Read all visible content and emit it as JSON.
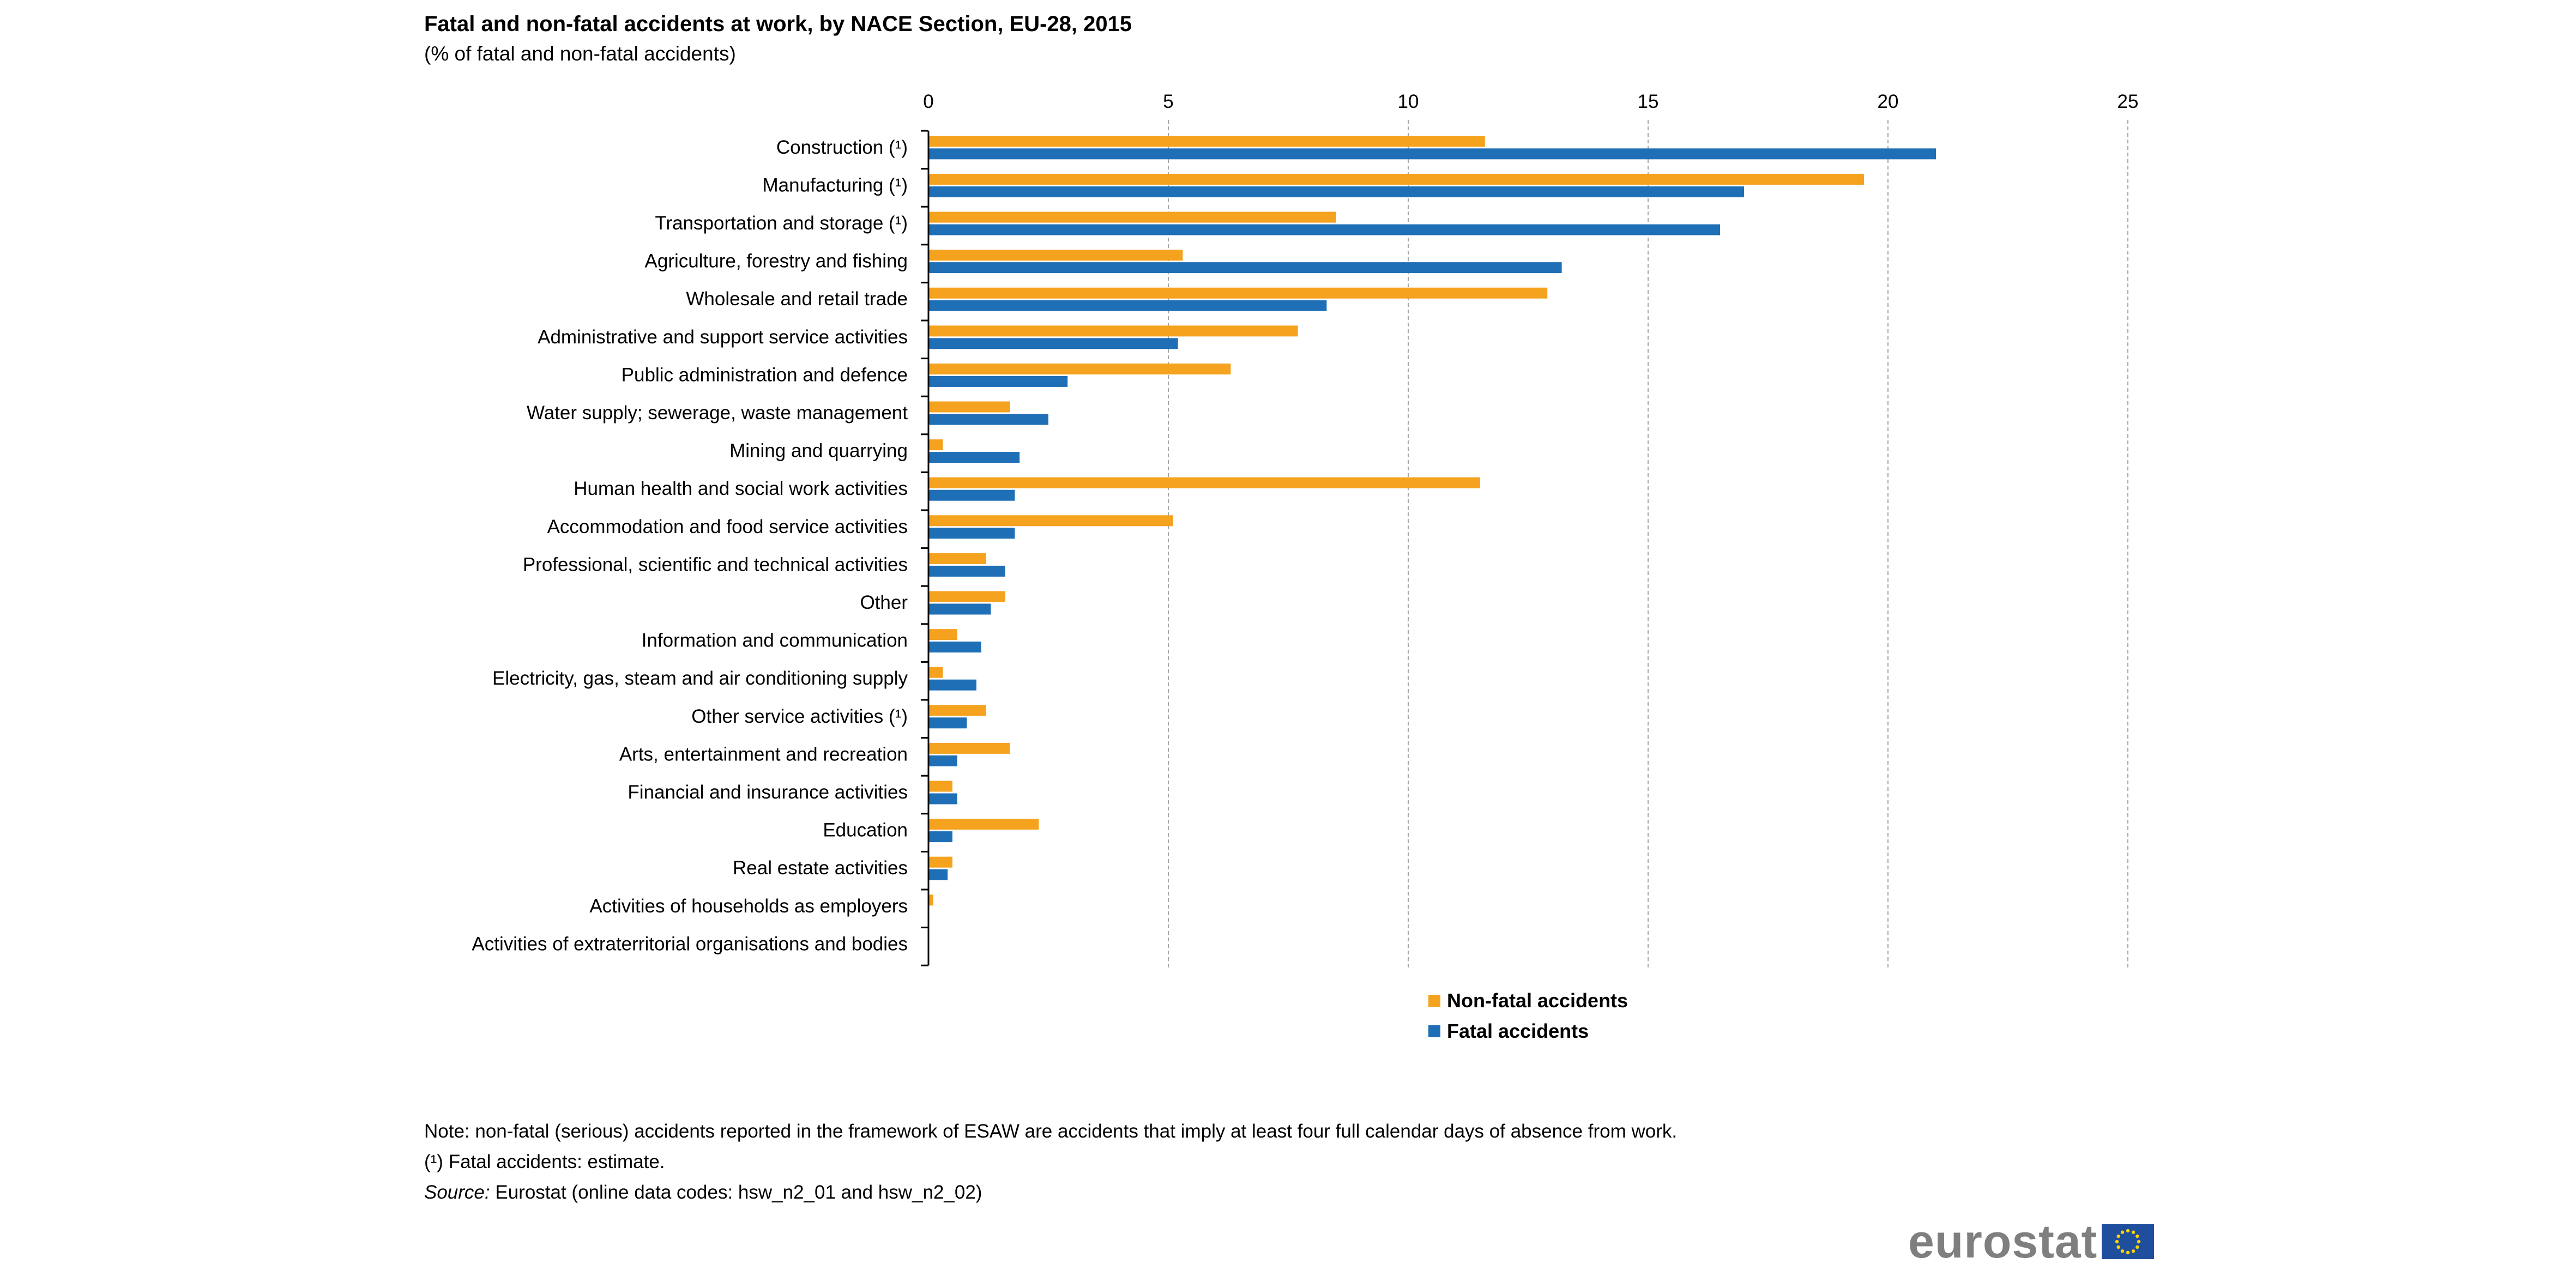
{
  "chart_data": {
    "type": "bar",
    "orientation": "horizontal",
    "title": "Fatal and non-fatal accidents at work, by NACE Section, EU-28, 2015",
    "subtitle": "(% of fatal and non-fatal accidents)",
    "xlim": [
      0,
      25
    ],
    "ticks": [
      "0",
      "5",
      "10",
      "15",
      "20",
      "25"
    ],
    "tick_values": [
      0,
      5,
      10,
      15,
      20,
      25
    ],
    "grid": "vertical-dashed",
    "legend_position": "bottom-center",
    "categories": [
      "Construction (¹)",
      "Manufacturing (¹)",
      "Transportation and storage (¹)",
      "Agriculture, forestry and fishing",
      "Wholesale and retail trade",
      "Administrative and support service activities",
      "Public administration and defence",
      "Water supply; sewerage, waste management",
      "Mining and quarrying",
      "Human health and social work activities",
      "Accommodation and food service activities",
      "Professional, scientific and technical activities",
      "Other",
      "Information and communication",
      "Electricity, gas, steam and air conditioning supply",
      "Other service activities (¹)",
      "Arts, entertainment and recreation",
      "Financial and insurance activities",
      "Education",
      "Real estate activities",
      "Activities of households as employers",
      "Activities of extraterritorial organisations and bodies"
    ],
    "series": [
      {
        "name": "Non-fatal accidents",
        "color": "#f5a21f",
        "values": [
          11.6,
          19.5,
          8.5,
          5.3,
          12.9,
          7.7,
          6.3,
          1.7,
          0.3,
          11.5,
          5.1,
          1.2,
          1.6,
          0.6,
          0.3,
          1.2,
          1.7,
          0.5,
          2.3,
          0.5,
          0.1,
          0.0
        ]
      },
      {
        "name": "Fatal accidents",
        "color": "#1f6fb6",
        "values": [
          21.0,
          17.0,
          16.5,
          13.2,
          8.3,
          5.2,
          2.9,
          2.5,
          1.9,
          1.8,
          1.8,
          1.6,
          1.3,
          1.1,
          1.0,
          0.8,
          0.6,
          0.6,
          0.5,
          0.4,
          0.0,
          0.0
        ]
      }
    ]
  },
  "notes": {
    "line1": "Note: non-fatal (serious) accidents reported in the framework of ESAW are accidents that imply at least four full calendar days of absence from work.",
    "line2": "(¹) Fatal accidents: estimate.",
    "source_label": "Source:",
    "source_text": " Eurostat (online data codes: hsw_n2_01 and hsw_n2_02)"
  },
  "logo": {
    "text": "eurostat",
    "text_color": "#7f7f7f",
    "flag_color": "#1f4e9c",
    "star_color": "#ffd500"
  }
}
